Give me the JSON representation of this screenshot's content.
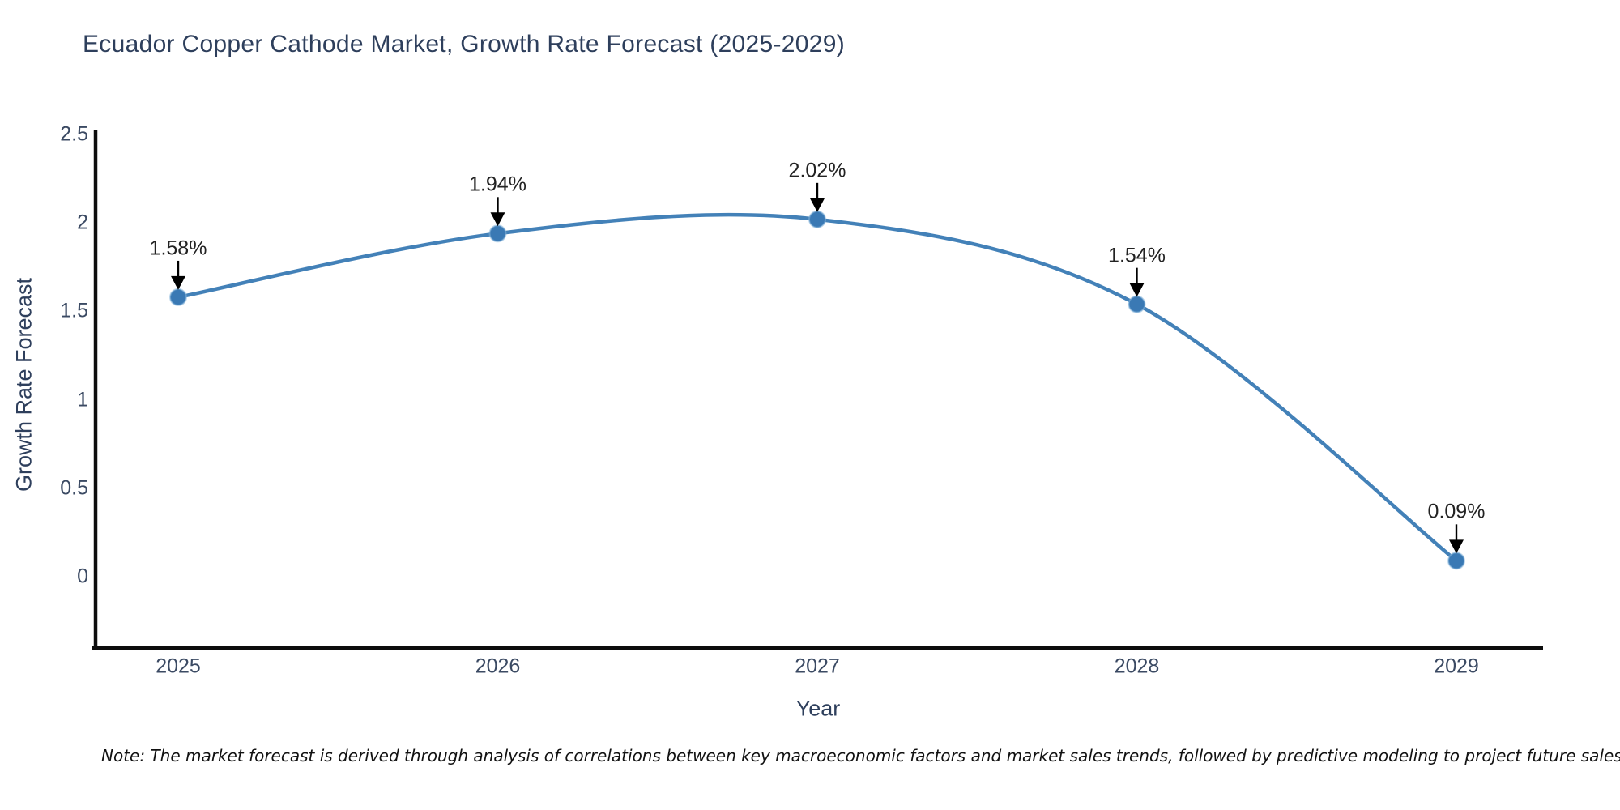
{
  "page": {
    "note": "Note: The market forecast is derived through analysis of correlations between key macroeconomic factors and market sales trends, followed by predictive modeling to project future sales"
  },
  "chart_data": {
    "type": "line",
    "title": "Ecuador Copper Cathode Market, Growth Rate Forecast (2025-2029)",
    "xlabel": "Year",
    "ylabel": "Growth Rate Forecast",
    "x": [
      2025,
      2026,
      2027,
      2028,
      2029
    ],
    "series": [
      {
        "name": "Growth Rate Forecast",
        "values": [
          1.58,
          1.94,
          2.02,
          1.54,
          0.09
        ],
        "point_labels": [
          "1.58%",
          "1.94%",
          "2.02%",
          "1.54%",
          "0.09%"
        ]
      }
    ],
    "xtick_labels": [
      "2025",
      "2026",
      "2027",
      "2028",
      "2029"
    ],
    "ytick_values": [
      0,
      0.5,
      1,
      1.5,
      2,
      2.5
    ],
    "ytick_labels": [
      "0",
      "0.5",
      "1",
      "1.5",
      "2",
      "2.5"
    ],
    "ylim": [
      -0.45,
      2.55
    ],
    "grid": false,
    "legend": false,
    "line_smoothing": true,
    "annotations_have_arrows": true
  },
  "colors": {
    "line": "#4381b8",
    "marker": "#3a79b4",
    "marker_edge": "#85b4da",
    "arrow": "#000000",
    "spine": "#0d0d0d",
    "title_text": "#2e3f5c",
    "axis_text": "#3b4a63",
    "annotation_text": "#222222",
    "note_text": "#111111",
    "background": "#ffffff"
  }
}
